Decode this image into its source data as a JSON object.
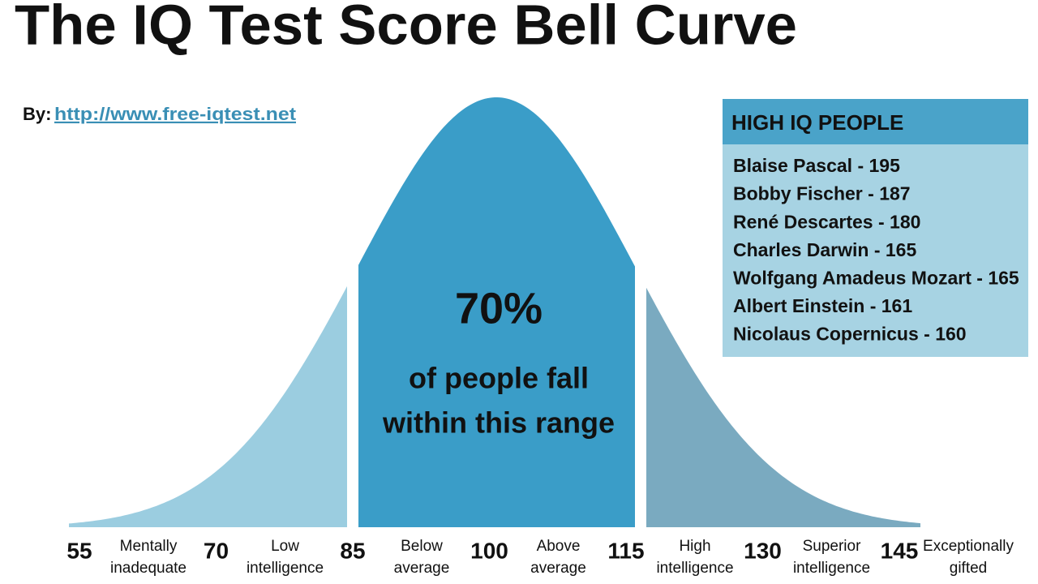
{
  "title": "The IQ Test Score Bell Curve",
  "byline": {
    "label": "By:",
    "link": "http://www.free-iqtest.net"
  },
  "center": {
    "percent": "70%",
    "caption_lines": [
      "of people fall",
      "within this range"
    ]
  },
  "high_iq": {
    "heading": "HIGH IQ PEOPLE",
    "people": [
      "Blaise Pascal - 195",
      "Bobby Fischer - 187",
      "René Descartes - 180",
      "Charles Darwin - 165",
      "Wolfgang Amadeus Mozart - 165",
      "Albert Einstein - 161",
      "Nicolaus Copernicus - 160"
    ]
  },
  "axis": {
    "scores": [
      "55",
      "70",
      "85",
      "100",
      "115",
      "130",
      "145"
    ],
    "bands": [
      [
        "Mentally",
        "inadequate"
      ],
      [
        "Low",
        "intelligence"
      ],
      [
        "Below",
        "average"
      ],
      [
        "Above",
        "average"
      ],
      [
        "High",
        "intelligence"
      ],
      [
        "Superior",
        "intelligence"
      ],
      [
        "Exceptionally",
        "gifted"
      ]
    ]
  }
}
